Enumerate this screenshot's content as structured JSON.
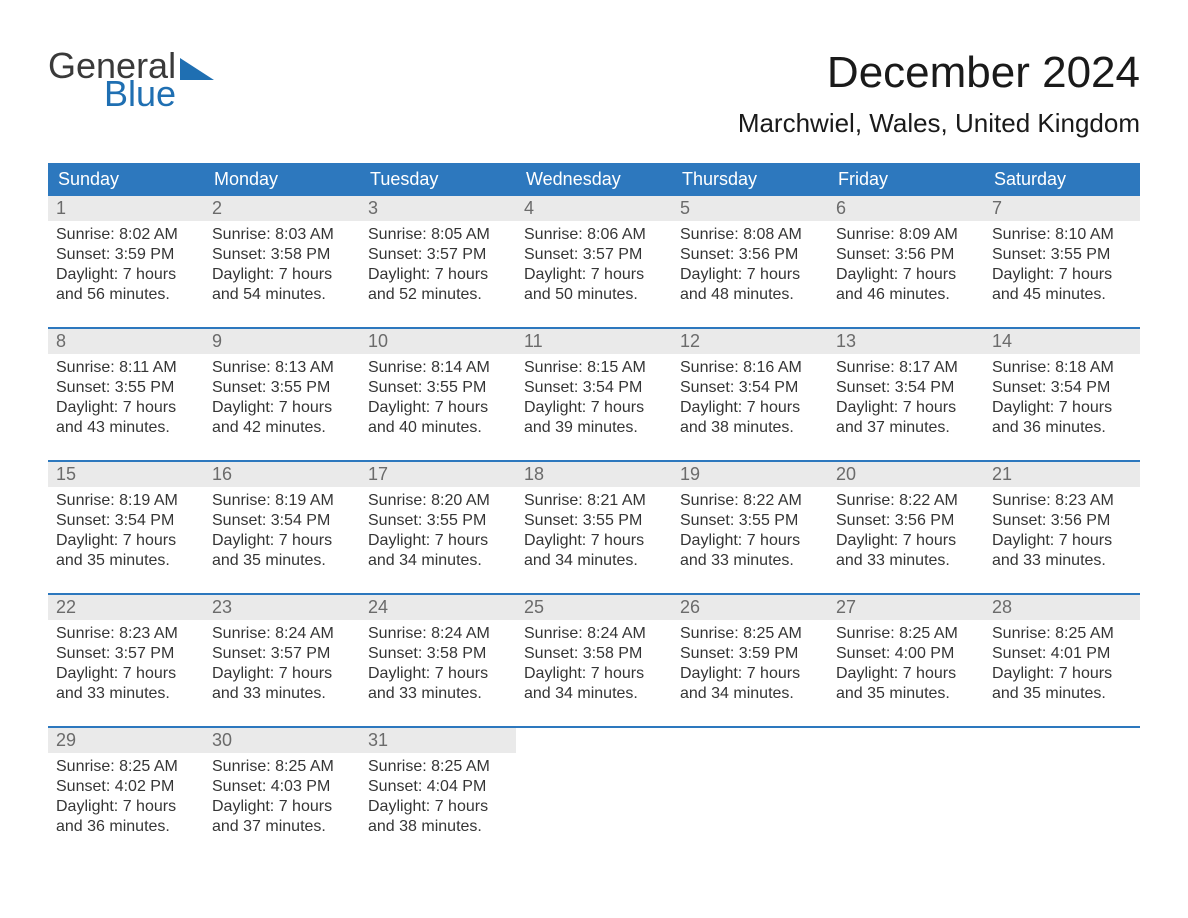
{
  "logo": {
    "word1": "General",
    "word2": "Blue",
    "triangle_color": "#1f6fb2",
    "text_dark": "#3a3a3a"
  },
  "title": "December 2024",
  "location": "Marchwiel, Wales, United Kingdom",
  "colors": {
    "header_bg": "#2d78be",
    "header_text": "#ffffff",
    "row_divider": "#2d78be",
    "daynum_bg": "#eaeaea",
    "daynum_text": "#6b6b6b",
    "body_text": "#353535",
    "background": "#ffffff"
  },
  "typography": {
    "title_fontsize": 44,
    "location_fontsize": 26,
    "dayheader_fontsize": 18,
    "daynum_fontsize": 18,
    "body_fontsize": 16,
    "font_family": "Arial"
  },
  "calendar": {
    "type": "table",
    "columns": [
      "Sunday",
      "Monday",
      "Tuesday",
      "Wednesday",
      "Thursday",
      "Friday",
      "Saturday"
    ],
    "weeks": [
      [
        {
          "n": "1",
          "sunrise": "Sunrise: 8:02 AM",
          "sunset": "Sunset: 3:59 PM",
          "day1": "Daylight: 7 hours",
          "day2": "and 56 minutes."
        },
        {
          "n": "2",
          "sunrise": "Sunrise: 8:03 AM",
          "sunset": "Sunset: 3:58 PM",
          "day1": "Daylight: 7 hours",
          "day2": "and 54 minutes."
        },
        {
          "n": "3",
          "sunrise": "Sunrise: 8:05 AM",
          "sunset": "Sunset: 3:57 PM",
          "day1": "Daylight: 7 hours",
          "day2": "and 52 minutes."
        },
        {
          "n": "4",
          "sunrise": "Sunrise: 8:06 AM",
          "sunset": "Sunset: 3:57 PM",
          "day1": "Daylight: 7 hours",
          "day2": "and 50 minutes."
        },
        {
          "n": "5",
          "sunrise": "Sunrise: 8:08 AM",
          "sunset": "Sunset: 3:56 PM",
          "day1": "Daylight: 7 hours",
          "day2": "and 48 minutes."
        },
        {
          "n": "6",
          "sunrise": "Sunrise: 8:09 AM",
          "sunset": "Sunset: 3:56 PM",
          "day1": "Daylight: 7 hours",
          "day2": "and 46 minutes."
        },
        {
          "n": "7",
          "sunrise": "Sunrise: 8:10 AM",
          "sunset": "Sunset: 3:55 PM",
          "day1": "Daylight: 7 hours",
          "day2": "and 45 minutes."
        }
      ],
      [
        {
          "n": "8",
          "sunrise": "Sunrise: 8:11 AM",
          "sunset": "Sunset: 3:55 PM",
          "day1": "Daylight: 7 hours",
          "day2": "and 43 minutes."
        },
        {
          "n": "9",
          "sunrise": "Sunrise: 8:13 AM",
          "sunset": "Sunset: 3:55 PM",
          "day1": "Daylight: 7 hours",
          "day2": "and 42 minutes."
        },
        {
          "n": "10",
          "sunrise": "Sunrise: 8:14 AM",
          "sunset": "Sunset: 3:55 PM",
          "day1": "Daylight: 7 hours",
          "day2": "and 40 minutes."
        },
        {
          "n": "11",
          "sunrise": "Sunrise: 8:15 AM",
          "sunset": "Sunset: 3:54 PM",
          "day1": "Daylight: 7 hours",
          "day2": "and 39 minutes."
        },
        {
          "n": "12",
          "sunrise": "Sunrise: 8:16 AM",
          "sunset": "Sunset: 3:54 PM",
          "day1": "Daylight: 7 hours",
          "day2": "and 38 minutes."
        },
        {
          "n": "13",
          "sunrise": "Sunrise: 8:17 AM",
          "sunset": "Sunset: 3:54 PM",
          "day1": "Daylight: 7 hours",
          "day2": "and 37 minutes."
        },
        {
          "n": "14",
          "sunrise": "Sunrise: 8:18 AM",
          "sunset": "Sunset: 3:54 PM",
          "day1": "Daylight: 7 hours",
          "day2": "and 36 minutes."
        }
      ],
      [
        {
          "n": "15",
          "sunrise": "Sunrise: 8:19 AM",
          "sunset": "Sunset: 3:54 PM",
          "day1": "Daylight: 7 hours",
          "day2": "and 35 minutes."
        },
        {
          "n": "16",
          "sunrise": "Sunrise: 8:19 AM",
          "sunset": "Sunset: 3:54 PM",
          "day1": "Daylight: 7 hours",
          "day2": "and 35 minutes."
        },
        {
          "n": "17",
          "sunrise": "Sunrise: 8:20 AM",
          "sunset": "Sunset: 3:55 PM",
          "day1": "Daylight: 7 hours",
          "day2": "and 34 minutes."
        },
        {
          "n": "18",
          "sunrise": "Sunrise: 8:21 AM",
          "sunset": "Sunset: 3:55 PM",
          "day1": "Daylight: 7 hours",
          "day2": "and 34 minutes."
        },
        {
          "n": "19",
          "sunrise": "Sunrise: 8:22 AM",
          "sunset": "Sunset: 3:55 PM",
          "day1": "Daylight: 7 hours",
          "day2": "and 33 minutes."
        },
        {
          "n": "20",
          "sunrise": "Sunrise: 8:22 AM",
          "sunset": "Sunset: 3:56 PM",
          "day1": "Daylight: 7 hours",
          "day2": "and 33 minutes."
        },
        {
          "n": "21",
          "sunrise": "Sunrise: 8:23 AM",
          "sunset": "Sunset: 3:56 PM",
          "day1": "Daylight: 7 hours",
          "day2": "and 33 minutes."
        }
      ],
      [
        {
          "n": "22",
          "sunrise": "Sunrise: 8:23 AM",
          "sunset": "Sunset: 3:57 PM",
          "day1": "Daylight: 7 hours",
          "day2": "and 33 minutes."
        },
        {
          "n": "23",
          "sunrise": "Sunrise: 8:24 AM",
          "sunset": "Sunset: 3:57 PM",
          "day1": "Daylight: 7 hours",
          "day2": "and 33 minutes."
        },
        {
          "n": "24",
          "sunrise": "Sunrise: 8:24 AM",
          "sunset": "Sunset: 3:58 PM",
          "day1": "Daylight: 7 hours",
          "day2": "and 33 minutes."
        },
        {
          "n": "25",
          "sunrise": "Sunrise: 8:24 AM",
          "sunset": "Sunset: 3:58 PM",
          "day1": "Daylight: 7 hours",
          "day2": "and 34 minutes."
        },
        {
          "n": "26",
          "sunrise": "Sunrise: 8:25 AM",
          "sunset": "Sunset: 3:59 PM",
          "day1": "Daylight: 7 hours",
          "day2": "and 34 minutes."
        },
        {
          "n": "27",
          "sunrise": "Sunrise: 8:25 AM",
          "sunset": "Sunset: 4:00 PM",
          "day1": "Daylight: 7 hours",
          "day2": "and 35 minutes."
        },
        {
          "n": "28",
          "sunrise": "Sunrise: 8:25 AM",
          "sunset": "Sunset: 4:01 PM",
          "day1": "Daylight: 7 hours",
          "day2": "and 35 minutes."
        }
      ],
      [
        {
          "n": "29",
          "sunrise": "Sunrise: 8:25 AM",
          "sunset": "Sunset: 4:02 PM",
          "day1": "Daylight: 7 hours",
          "day2": "and 36 minutes."
        },
        {
          "n": "30",
          "sunrise": "Sunrise: 8:25 AM",
          "sunset": "Sunset: 4:03 PM",
          "day1": "Daylight: 7 hours",
          "day2": "and 37 minutes."
        },
        {
          "n": "31",
          "sunrise": "Sunrise: 8:25 AM",
          "sunset": "Sunset: 4:04 PM",
          "day1": "Daylight: 7 hours",
          "day2": "and 38 minutes."
        },
        null,
        null,
        null,
        null
      ]
    ]
  }
}
